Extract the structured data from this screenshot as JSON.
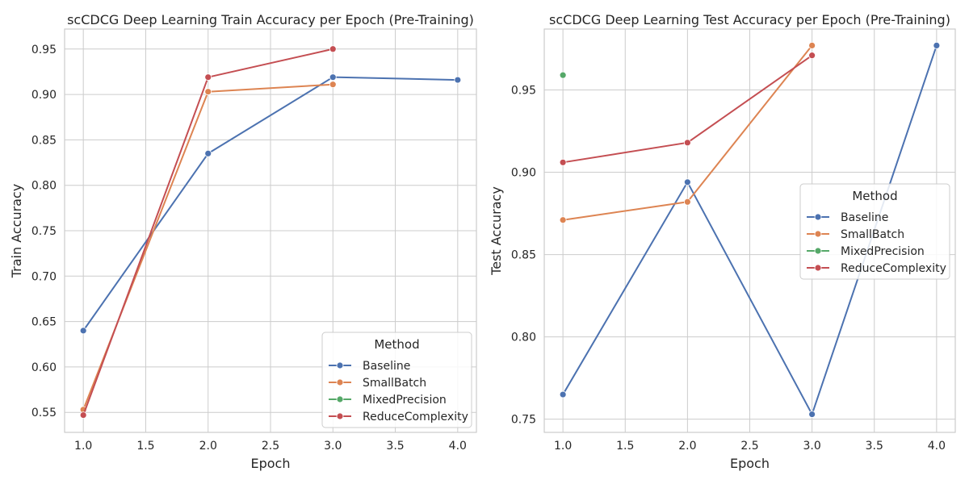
{
  "chart_data": [
    {
      "type": "line",
      "title": "scCDCG Deep Learning Train Accuracy per Epoch (Pre-Training)",
      "xlabel": "Epoch",
      "ylabel": "Train Accuracy",
      "xlim": [
        0.85,
        4.15
      ],
      "ylim": [
        0.528,
        0.972
      ],
      "xticks": [
        "1.0",
        "1.5",
        "2.0",
        "2.5",
        "3.0",
        "3.5",
        "4.0"
      ],
      "yticks": [
        "0.55",
        "0.60",
        "0.65",
        "0.70",
        "0.75",
        "0.80",
        "0.85",
        "0.90",
        "0.95"
      ],
      "grid": true,
      "legend_title": "Method",
      "legend_position": "lower-right",
      "series": [
        {
          "name": "Baseline",
          "color": "#4c72b0",
          "x": [
            1,
            2,
            3,
            4
          ],
          "y": [
            0.64,
            0.835,
            0.919,
            0.916
          ]
        },
        {
          "name": "SmallBatch",
          "color": "#dd8452",
          "x": [
            1,
            2,
            3
          ],
          "y": [
            0.553,
            0.903,
            0.911
          ]
        },
        {
          "name": "MixedPrecision",
          "color": "#55a868",
          "x": [],
          "y": []
        },
        {
          "name": "ReduceComplexity",
          "color": "#c44e52",
          "x": [
            1,
            2,
            3
          ],
          "y": [
            0.547,
            0.919,
            0.95
          ]
        }
      ]
    },
    {
      "type": "line",
      "title": "scCDCG Deep Learning Test Accuracy per Epoch (Pre-Training)",
      "xlabel": "Epoch",
      "ylabel": "Test Accuracy",
      "xlim": [
        0.85,
        4.15
      ],
      "ylim": [
        0.742,
        0.987
      ],
      "xticks": [
        "1.0",
        "1.5",
        "2.0",
        "2.5",
        "3.0",
        "3.5",
        "4.0"
      ],
      "yticks": [
        "0.75",
        "0.80",
        "0.85",
        "0.90",
        "0.95"
      ],
      "grid": true,
      "legend_title": "Method",
      "legend_position": "center-right",
      "series": [
        {
          "name": "Baseline",
          "color": "#4c72b0",
          "x": [
            1,
            2,
            3,
            4
          ],
          "y": [
            0.765,
            0.894,
            0.753,
            0.977
          ]
        },
        {
          "name": "SmallBatch",
          "color": "#dd8452",
          "x": [
            1,
            2,
            3
          ],
          "y": [
            0.871,
            0.882,
            0.977
          ]
        },
        {
          "name": "MixedPrecision",
          "color": "#55a868",
          "x": [
            1
          ],
          "y": [
            0.959
          ]
        },
        {
          "name": "ReduceComplexity",
          "color": "#c44e52",
          "x": [
            1,
            2,
            3
          ],
          "y": [
            0.906,
            0.918,
            0.971
          ]
        }
      ]
    }
  ]
}
